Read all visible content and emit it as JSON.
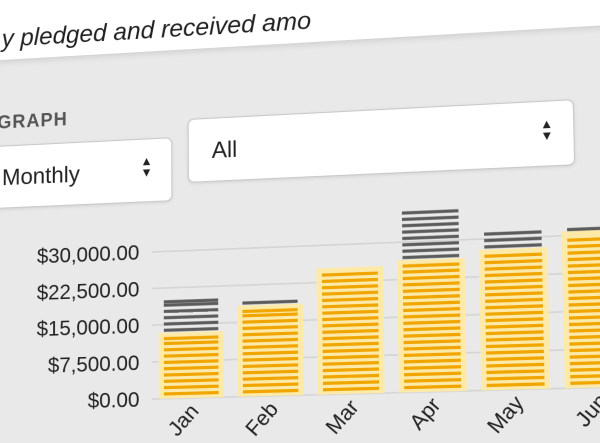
{
  "header": {
    "description": "y pledged and received amo",
    "section_title": "GRAPH"
  },
  "filters": {
    "period": {
      "value": "Monthly",
      "icon": "sort-caret-icon"
    },
    "campaign": {
      "value": "All",
      "icon": "sort-caret-icon"
    }
  },
  "colors": {
    "received": "#f0a500",
    "received_halo": "#fde9a8",
    "pledged": "#5c5c5c",
    "grid": "#d4d4d4"
  },
  "chart_data": {
    "type": "bar",
    "stacked": true,
    "categories": [
      "Jan",
      "Feb",
      "Mar",
      "Apr",
      "May",
      "Jun"
    ],
    "series": [
      {
        "values": [
          12500,
          17500,
          24500,
          25500,
          27000,
          30000
        ]
      },
      {
        "values": [
          7500,
          2000,
          1000,
          11000,
          4500,
          1500
        ]
      }
    ],
    "y_ticks": [
      "$0.00",
      "$7,500.00",
      "$15,000.00",
      "$22,500.00",
      "$30,000.00"
    ],
    "ylim": [
      0,
      37500
    ],
    "grid": true
  }
}
